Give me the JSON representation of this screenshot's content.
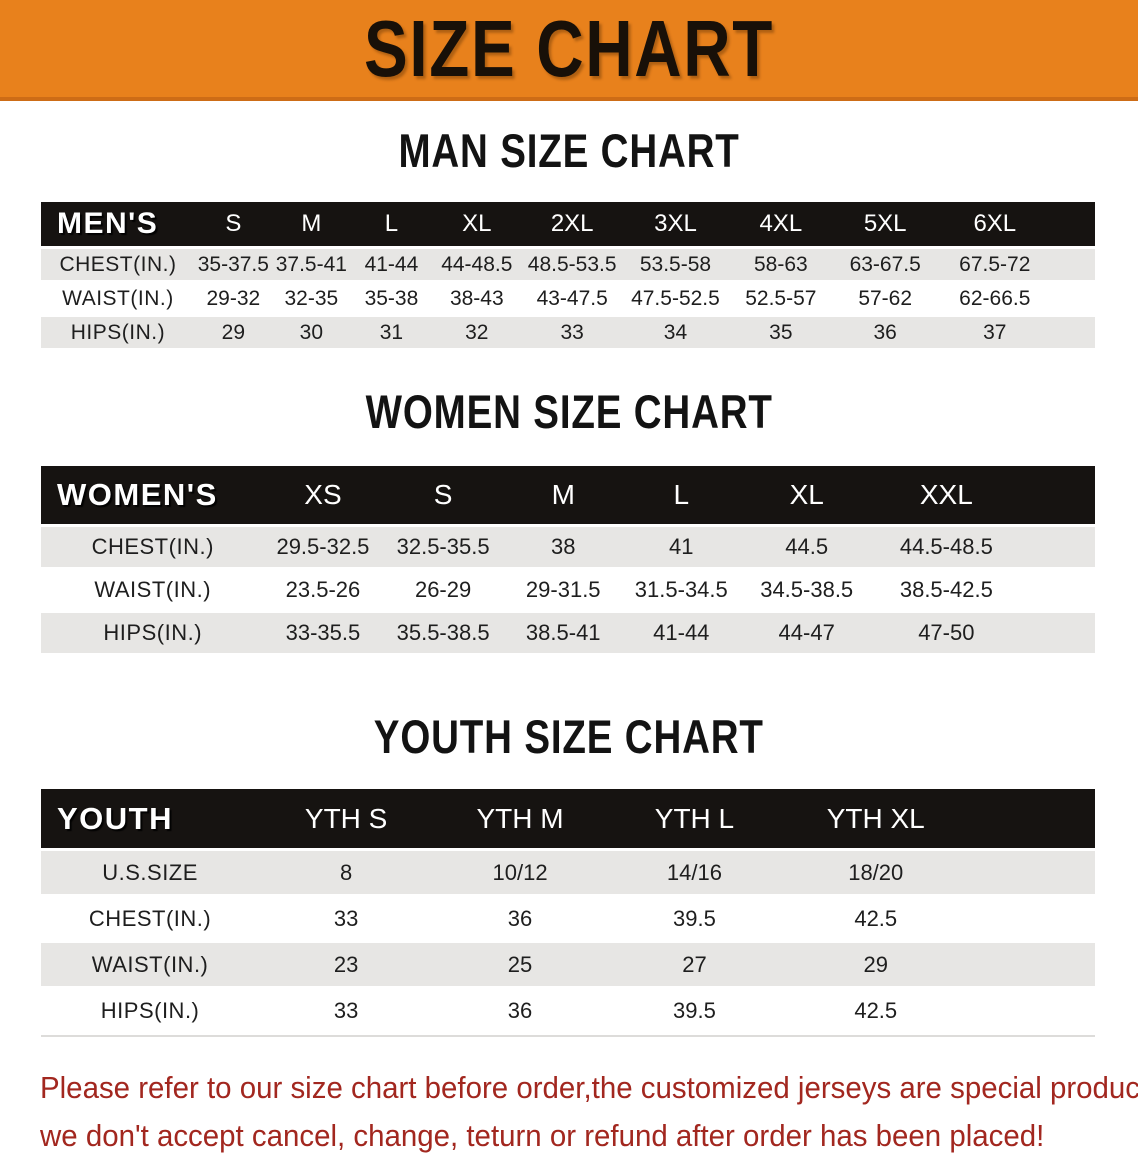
{
  "banner": {
    "title": "SIZE CHART"
  },
  "sections": {
    "men": {
      "title": "MAN SIZE CHART"
    },
    "women": {
      "title": "WOMEN SIZE CHART"
    },
    "youth": {
      "title": "YOUTH SIZE CHART"
    }
  },
  "tables": {
    "men": {
      "label": "MEN'S",
      "columns": [
        "S",
        "M",
        "L",
        "XL",
        "2XL",
        "3XL",
        "4XL",
        "5XL",
        "6XL"
      ],
      "rows": [
        {
          "label": "CHEST(IN.)",
          "values": [
            "35-37.5",
            "37.5-41",
            "41-44",
            "44-48.5",
            "48.5-53.5",
            "53.5-58",
            "58-63",
            "63-67.5",
            "67.5-72"
          ]
        },
        {
          "label": "WAIST(IN.)",
          "values": [
            "29-32",
            "32-35",
            "35-38",
            "38-43",
            "43-47.5",
            "47.5-52.5",
            "52.5-57",
            "57-62",
            "62-66.5"
          ]
        },
        {
          "label": "HIPS(IN.)",
          "values": [
            "29",
            "30",
            "31",
            "32",
            "33",
            "34",
            "35",
            "36",
            "37"
          ]
        }
      ]
    },
    "women": {
      "label": "WOMEN'S",
      "columns": [
        "XS",
        "S",
        "M",
        "L",
        "XL",
        "XXL"
      ],
      "rows": [
        {
          "label": "CHEST(IN.)",
          "values": [
            "29.5-32.5",
            "32.5-35.5",
            "38",
            "41",
            "44.5",
            "44.5-48.5"
          ]
        },
        {
          "label": "WAIST(IN.)",
          "values": [
            "23.5-26",
            "26-29",
            "29-31.5",
            "31.5-34.5",
            "34.5-38.5",
            "38.5-42.5"
          ]
        },
        {
          "label": "HIPS(IN.)",
          "values": [
            "33-35.5",
            "35.5-38.5",
            "38.5-41",
            "41-44",
            "44-47",
            "47-50"
          ]
        }
      ]
    },
    "youth": {
      "label": "YOUTH",
      "columns": [
        "YTH S",
        "YTH M",
        "YTH L",
        "YTH XL"
      ],
      "rows": [
        {
          "label": "U.S.SIZE",
          "values": [
            "8",
            "10/12",
            "14/16",
            "18/20"
          ]
        },
        {
          "label": "CHEST(IN.)",
          "values": [
            "33",
            "36",
            "39.5",
            "42.5"
          ]
        },
        {
          "label": "WAIST(IN.)",
          "values": [
            "23",
            "25",
            "27",
            "29"
          ]
        },
        {
          "label": "HIPS(IN.)",
          "values": [
            "33",
            "36",
            "39.5",
            "42.5"
          ]
        }
      ]
    }
  },
  "disclaimer": {
    "line1": "Please refer to our size chart before order,the customized jerseys are special products,",
    "line2": "we don't accept cancel, change, teturn or refund after order has been placed!"
  },
  "colors": {
    "banner_orange": "#e8811c",
    "banner_edge": "#cd6c16",
    "header_black": "#161311",
    "row_gray": "#e7e6e4",
    "disclaimer_red": "#a2271f"
  }
}
